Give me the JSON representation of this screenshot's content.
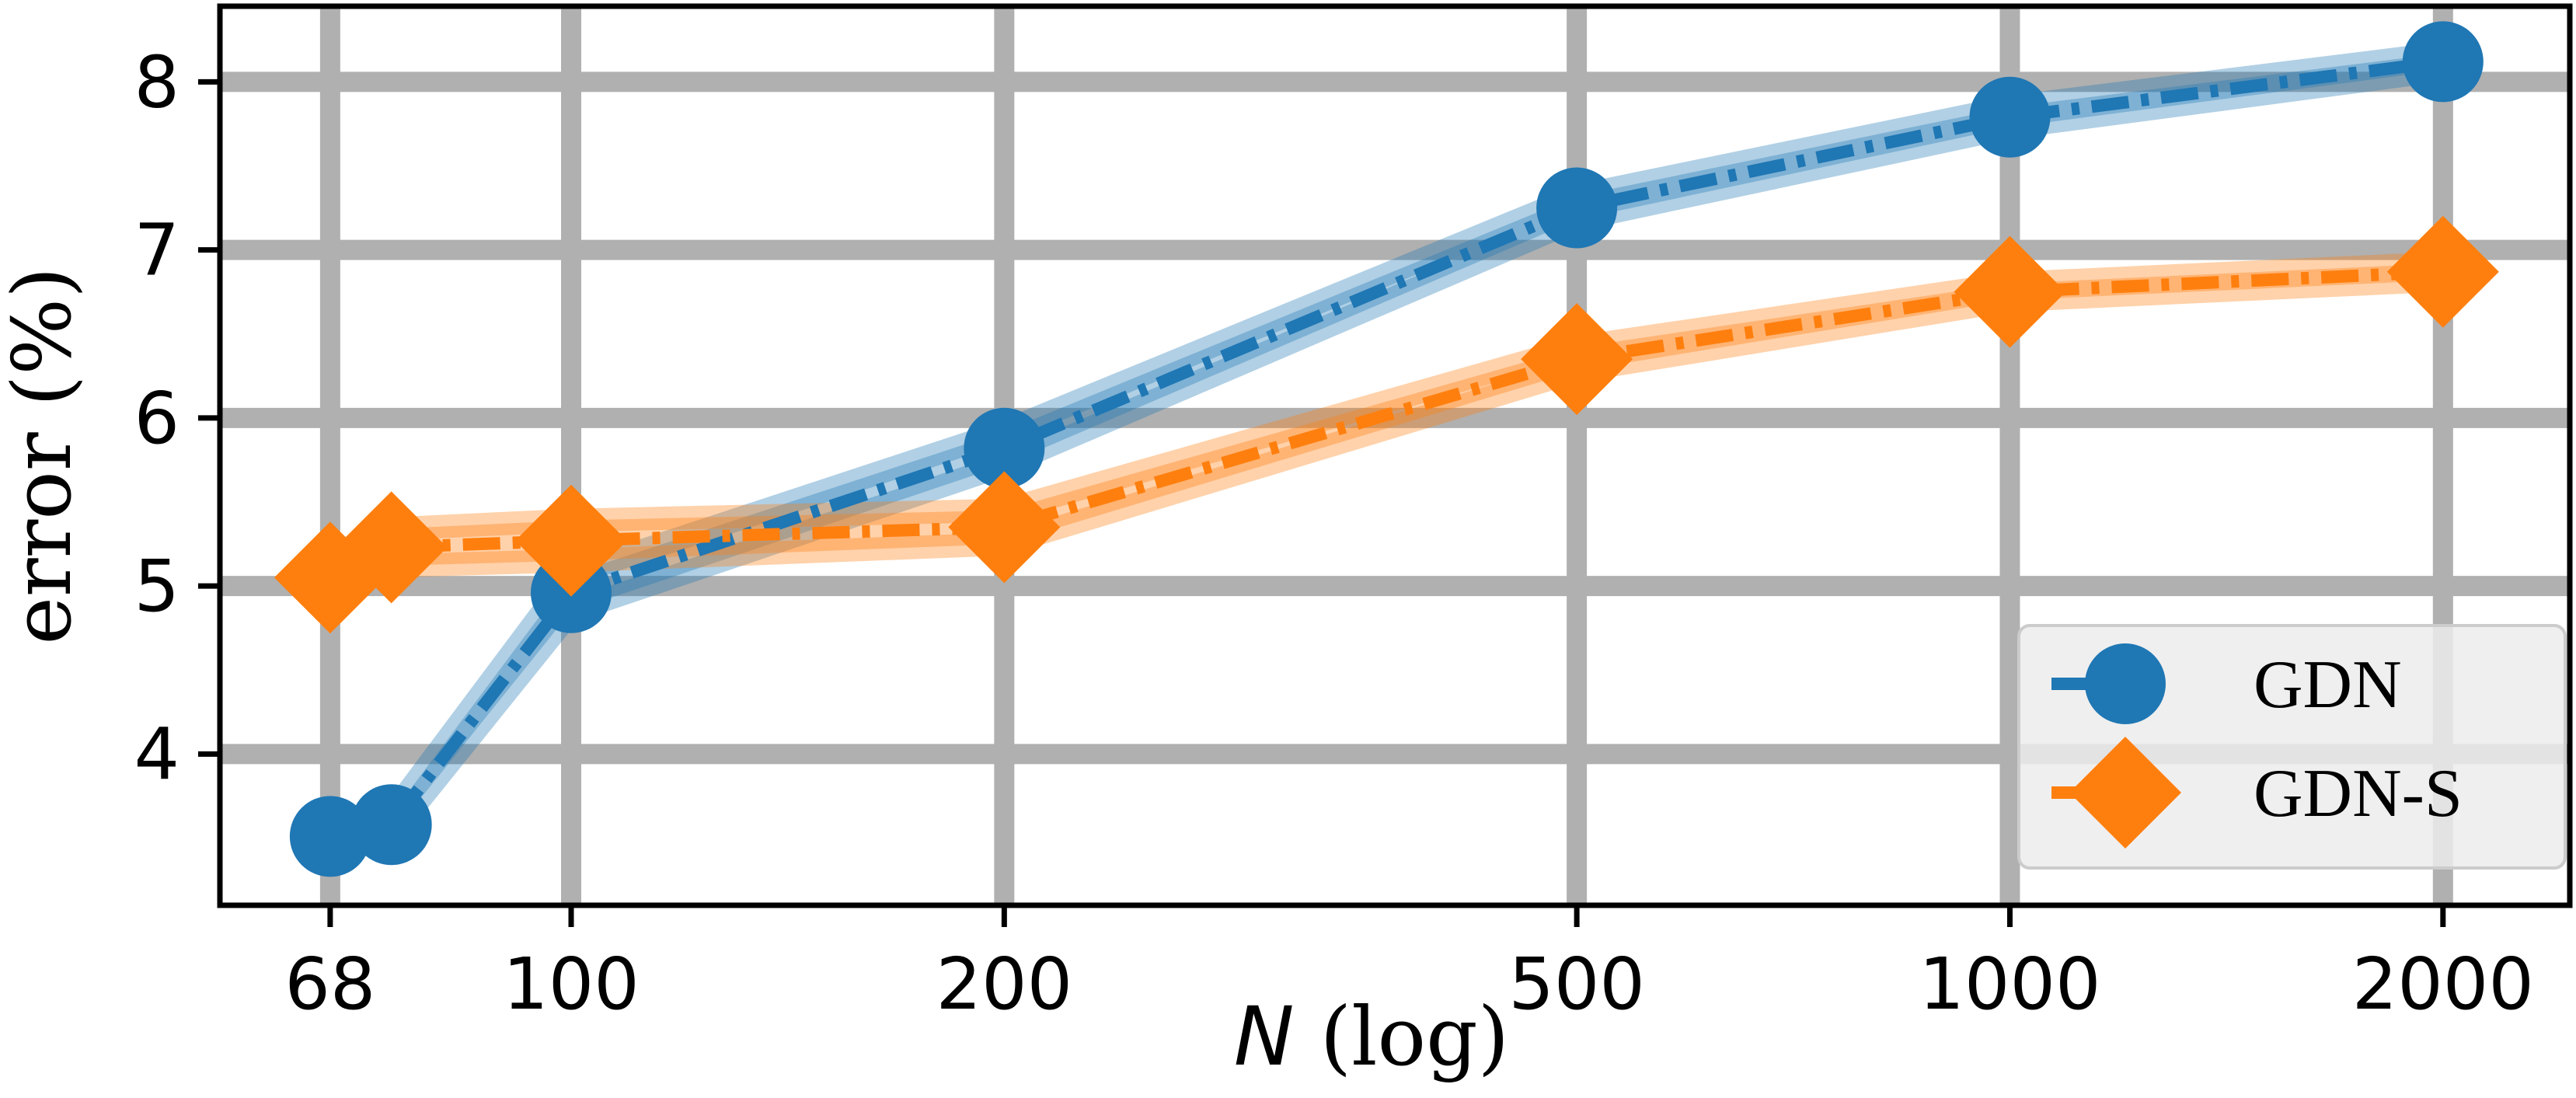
{
  "chart_data": {
    "type": "line",
    "xscale": "log",
    "x": [
      68,
      75,
      100,
      200,
      500,
      1000,
      2000
    ],
    "xticks": [
      68,
      100,
      200,
      500,
      1000,
      2000
    ],
    "xtick_labels": [
      "68",
      "100",
      "200",
      "500",
      "1000",
      "2000"
    ],
    "yticks": [
      4,
      5,
      6,
      7,
      8
    ],
    "ytick_labels": [
      "4",
      "5",
      "6",
      "7",
      "8"
    ],
    "xlim": [
      57,
      2450
    ],
    "ylim": [
      3.1,
      8.45
    ],
    "grid": true,
    "xlabel_var": "N",
    "xlabel_rest": " (log)",
    "ylabel": "error (%)",
    "legend_position": "lower-right",
    "series": [
      {
        "name": "GDN",
        "color": "#1f77b4",
        "marker": "circle",
        "values": [
          3.51,
          3.58,
          4.96,
          5.82,
          7.25,
          7.79,
          8.12
        ],
        "band_low": [
          3.46,
          3.52,
          4.85,
          5.72,
          7.18,
          7.73,
          8.07
        ],
        "band_high": [
          3.56,
          3.64,
          5.07,
          5.92,
          7.32,
          7.85,
          8.17
        ]
      },
      {
        "name": "GDN-S",
        "color": "#ff7f0e",
        "marker": "diamond",
        "values": [
          5.05,
          5.23,
          5.27,
          5.35,
          6.35,
          6.75,
          6.87
        ],
        "band_low": [
          4.96,
          5.12,
          5.15,
          5.25,
          6.28,
          6.7,
          6.82
        ],
        "band_high": [
          5.14,
          5.34,
          5.39,
          5.45,
          6.42,
          6.8,
          6.92
        ]
      }
    ]
  }
}
